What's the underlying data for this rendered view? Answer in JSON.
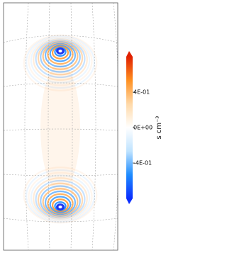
{
  "chart_data": {
    "type": "heatmap",
    "colorbar": {
      "label": "s cm⁻³",
      "clim": [
        -0.8,
        0.8
      ],
      "ticks": [
        {
          "value": 0.4,
          "label": "4E-01"
        },
        {
          "value": 0,
          "label": "0E+00"
        },
        {
          "value": -0.4,
          "label": "-4E-01"
        }
      ],
      "colormap": [
        "#0a2dff",
        "#1e8cff",
        "#bfe3ff",
        "#ffffff",
        "#ffd9a8",
        "#ff9020",
        "#e02000"
      ]
    }
  }
}
